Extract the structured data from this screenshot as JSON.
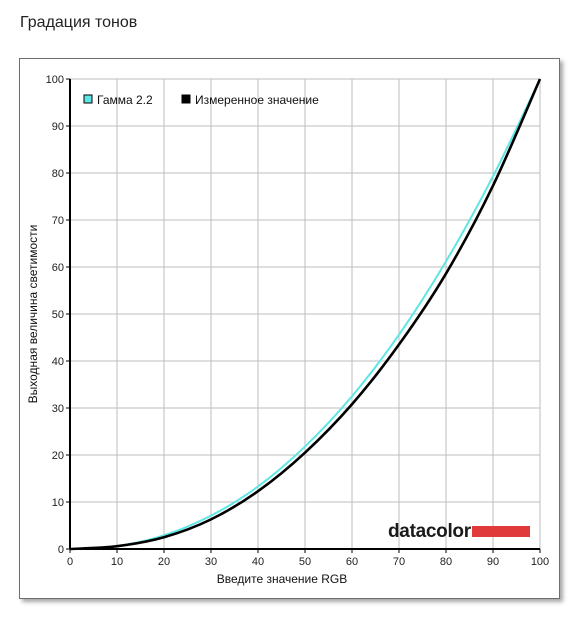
{
  "page": {
    "title": "Градация тонов"
  },
  "colors": {
    "gamma_line": "#5ee6e6",
    "measured_line": "#000000",
    "grid": "#bdbdbd",
    "logo_bar": "#e03a3a"
  },
  "logo": {
    "text": "datacolor"
  },
  "chart_data": {
    "type": "line",
    "xlabel": "Введите значение RGB",
    "ylabel": "Выходная величина светимости",
    "xlim": [
      0,
      100
    ],
    "ylim": [
      0,
      100
    ],
    "xticks": [
      0,
      10,
      20,
      30,
      40,
      50,
      60,
      70,
      80,
      90,
      100
    ],
    "yticks": [
      0,
      10,
      20,
      30,
      40,
      50,
      60,
      70,
      80,
      90,
      100
    ],
    "grid": true,
    "legend_position": "top-left",
    "series": [
      {
        "name": "Гамма 2.2",
        "color": "#5ee6e6",
        "x": [
          0,
          10,
          20,
          30,
          40,
          50,
          60,
          70,
          80,
          90,
          100
        ],
        "y": [
          0,
          0.6,
          2.9,
          7.1,
          13.3,
          21.8,
          32.5,
          45.6,
          61.2,
          79.3,
          100
        ]
      },
      {
        "name": "Измеренное значение",
        "color": "#000000",
        "x": [
          0,
          10,
          20,
          30,
          40,
          50,
          60,
          70,
          80,
          90,
          100
        ],
        "y": [
          0,
          0.6,
          2.5,
          6.3,
          12.3,
          20.5,
          30.8,
          43.5,
          58.6,
          77.3,
          100
        ]
      }
    ]
  }
}
